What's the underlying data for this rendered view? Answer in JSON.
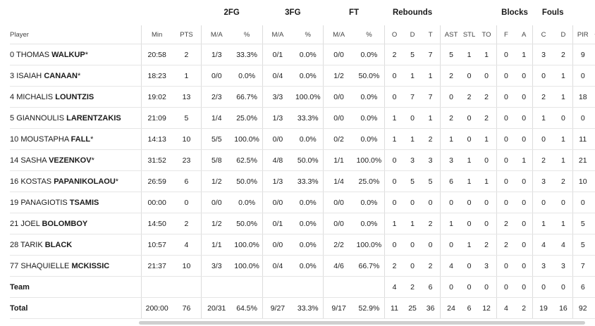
{
  "groups": {
    "fg2": "2FG",
    "fg3": "3FG",
    "ft": "FT",
    "rebounds": "Rebounds",
    "blocks": "Blocks",
    "fouls": "Fouls"
  },
  "subheaders": {
    "player": "Player",
    "min": "Min",
    "pts": "PTS",
    "fg2_ma": "M/A",
    "fg2_pct": "%",
    "fg3_ma": "M/A",
    "fg3_pct": "%",
    "ft_ma": "M/A",
    "ft_pct": "%",
    "o": "O",
    "d": "D",
    "t": "T",
    "ast": "AST",
    "stl": "STL",
    "to": "TO",
    "bf": "F",
    "ba": "A",
    "fc": "C",
    "fd": "D",
    "pir": "PIR",
    "pm": "+/"
  },
  "players": [
    {
      "num": "0",
      "first": "THOMAS",
      "last": "WALKUP",
      "star": "*",
      "min": "20:58",
      "pts": "2",
      "fg2": "1/3",
      "fg2p": "33.3%",
      "fg3": "0/1",
      "fg3p": "0.0%",
      "ft": "0/0",
      "ftp": "0.0%",
      "o": "2",
      "d": "5",
      "t": "7",
      "ast": "5",
      "stl": "1",
      "to": "1",
      "bf": "0",
      "ba": "1",
      "fc": "3",
      "fd": "2",
      "pir": "9"
    },
    {
      "num": "3",
      "first": "ISAIAH",
      "last": "CANAAN",
      "star": "*",
      "min": "18:23",
      "pts": "1",
      "fg2": "0/0",
      "fg2p": "0.0%",
      "fg3": "0/4",
      "fg3p": "0.0%",
      "ft": "1/2",
      "ftp": "50.0%",
      "o": "0",
      "d": "1",
      "t": "1",
      "ast": "2",
      "stl": "0",
      "to": "0",
      "bf": "0",
      "ba": "0",
      "fc": "0",
      "fd": "1",
      "pir": "0"
    },
    {
      "num": "4",
      "first": "MICHALIS",
      "last": "LOUNTZIS",
      "star": "",
      "min": "19:02",
      "pts": "13",
      "fg2": "2/3",
      "fg2p": "66.7%",
      "fg3": "3/3",
      "fg3p": "100.0%",
      "ft": "0/0",
      "ftp": "0.0%",
      "o": "0",
      "d": "7",
      "t": "7",
      "ast": "0",
      "stl": "2",
      "to": "2",
      "bf": "0",
      "ba": "0",
      "fc": "2",
      "fd": "1",
      "pir": "18"
    },
    {
      "num": "5",
      "first": "GIANNOULIS",
      "last": "LARENTZAKIS",
      "star": "",
      "min": "21:09",
      "pts": "5",
      "fg2": "1/4",
      "fg2p": "25.0%",
      "fg3": "1/3",
      "fg3p": "33.3%",
      "ft": "0/0",
      "ftp": "0.0%",
      "o": "1",
      "d": "0",
      "t": "1",
      "ast": "2",
      "stl": "0",
      "to": "2",
      "bf": "0",
      "ba": "0",
      "fc": "1",
      "fd": "0",
      "pir": "0"
    },
    {
      "num": "10",
      "first": "MOUSTAPHA",
      "last": "FALL",
      "star": "*",
      "min": "14:13",
      "pts": "10",
      "fg2": "5/5",
      "fg2p": "100.0%",
      "fg3": "0/0",
      "fg3p": "0.0%",
      "ft": "0/2",
      "ftp": "0.0%",
      "o": "1",
      "d": "1",
      "t": "2",
      "ast": "1",
      "stl": "0",
      "to": "1",
      "bf": "0",
      "ba": "0",
      "fc": "0",
      "fd": "1",
      "pir": "11"
    },
    {
      "num": "14",
      "first": "SASHA",
      "last": "VEZENKOV",
      "star": "*",
      "min": "31:52",
      "pts": "23",
      "fg2": "5/8",
      "fg2p": "62.5%",
      "fg3": "4/8",
      "fg3p": "50.0%",
      "ft": "1/1",
      "ftp": "100.0%",
      "o": "0",
      "d": "3",
      "t": "3",
      "ast": "3",
      "stl": "1",
      "to": "0",
      "bf": "0",
      "ba": "1",
      "fc": "2",
      "fd": "1",
      "pir": "21"
    },
    {
      "num": "16",
      "first": "KOSTAS",
      "last": "PAPANIKOLAOU",
      "star": "*",
      "min": "26:59",
      "pts": "6",
      "fg2": "1/2",
      "fg2p": "50.0%",
      "fg3": "1/3",
      "fg3p": "33.3%",
      "ft": "1/4",
      "ftp": "25.0%",
      "o": "0",
      "d": "5",
      "t": "5",
      "ast": "6",
      "stl": "1",
      "to": "1",
      "bf": "0",
      "ba": "0",
      "fc": "3",
      "fd": "2",
      "pir": "10"
    },
    {
      "num": "19",
      "first": "PANAGIOTIS",
      "last": "TSAMIS",
      "star": "",
      "min": "00:00",
      "pts": "0",
      "fg2": "0/0",
      "fg2p": "0.0%",
      "fg3": "0/0",
      "fg3p": "0.0%",
      "ft": "0/0",
      "ftp": "0.0%",
      "o": "0",
      "d": "0",
      "t": "0",
      "ast": "0",
      "stl": "0",
      "to": "0",
      "bf": "0",
      "ba": "0",
      "fc": "0",
      "fd": "0",
      "pir": "0"
    },
    {
      "num": "21",
      "first": "JOEL",
      "last": "BOLOMBOY",
      "star": "",
      "min": "14:50",
      "pts": "2",
      "fg2": "1/2",
      "fg2p": "50.0%",
      "fg3": "0/1",
      "fg3p": "0.0%",
      "ft": "0/0",
      "ftp": "0.0%",
      "o": "1",
      "d": "1",
      "t": "2",
      "ast": "1",
      "stl": "0",
      "to": "0",
      "bf": "2",
      "ba": "0",
      "fc": "1",
      "fd": "1",
      "pir": "5"
    },
    {
      "num": "28",
      "first": "TARIK",
      "last": "BLACK",
      "star": "",
      "min": "10:57",
      "pts": "4",
      "fg2": "1/1",
      "fg2p": "100.0%",
      "fg3": "0/0",
      "fg3p": "0.0%",
      "ft": "2/2",
      "ftp": "100.0%",
      "o": "0",
      "d": "0",
      "t": "0",
      "ast": "0",
      "stl": "1",
      "to": "2",
      "bf": "2",
      "ba": "0",
      "fc": "4",
      "fd": "4",
      "pir": "5"
    },
    {
      "num": "77",
      "first": "SHAQUIELLE",
      "last": "MCKISSIC",
      "star": "",
      "min": "21:37",
      "pts": "10",
      "fg2": "3/3",
      "fg2p": "100.0%",
      "fg3": "0/4",
      "fg3p": "0.0%",
      "ft": "4/6",
      "ftp": "66.7%",
      "o": "2",
      "d": "0",
      "t": "2",
      "ast": "4",
      "stl": "0",
      "to": "3",
      "bf": "0",
      "ba": "0",
      "fc": "3",
      "fd": "3",
      "pir": "7"
    }
  ],
  "team": {
    "label": "Team",
    "o": "4",
    "d": "2",
    "t": "6",
    "ast": "0",
    "stl": "0",
    "to": "0",
    "bf": "0",
    "ba": "0",
    "fc": "0",
    "fd": "0",
    "pir": "6"
  },
  "total": {
    "label": "Total",
    "min": "200:00",
    "pts": "76",
    "fg2": "20/31",
    "fg2p": "64.5%",
    "fg3": "9/27",
    "fg3p": "33.3%",
    "ft": "9/17",
    "ftp": "52.9%",
    "o": "11",
    "d": "25",
    "t": "36",
    "ast": "24",
    "stl": "6",
    "to": "12",
    "bf": "4",
    "ba": "2",
    "fc": "19",
    "fd": "16",
    "pir": "92"
  }
}
